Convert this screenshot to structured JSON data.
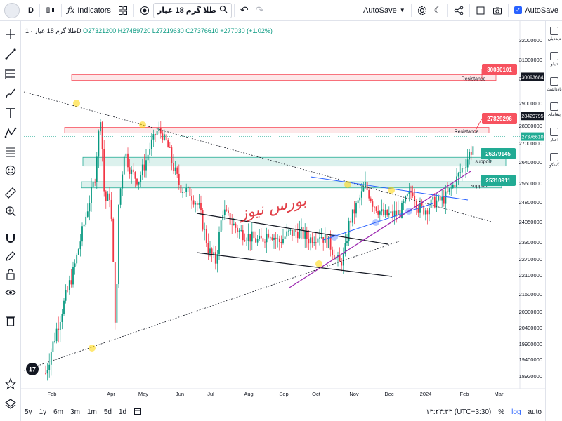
{
  "toolbar": {
    "interval": "D",
    "indicators_label": "Indicators",
    "symbol": "طلا گرم 18 عیار",
    "autosave": "AutoSave",
    "autosave_right": "AutoSave"
  },
  "legend": {
    "title": "طلا گرم 18 عیار · 1D",
    "open": "O27321200",
    "high": "H27489720",
    "low": "L27219630",
    "close": "C27376610",
    "change": "+277030 (+1.02%)"
  },
  "bottom": {
    "ranges": [
      "5y",
      "1y",
      "6m",
      "3m",
      "1m",
      "5d",
      "1d"
    ],
    "time": "۱۳:۲۴:۳۳ (UTC+3:30)",
    "percent": "%",
    "log": "log",
    "auto": "auto"
  },
  "right_panel": {
    "items": [
      "دیده‌بان",
      "تایلو",
      "یادداشت",
      "پیغامای",
      "اخبار",
      "گفتگو"
    ]
  },
  "watermark": "بورس نیوز",
  "logo": "17",
  "chart_data": {
    "type": "candlestick",
    "title": "طلا گرم 18 عیار · 1D",
    "x_labels": [
      "Feb",
      "Apr",
      "May",
      "Jun",
      "Jul",
      "Aug",
      "Sep",
      "Oct",
      "Nov",
      "Dec",
      "2024",
      "Feb",
      "Mar"
    ],
    "y_ticks": [
      32000000,
      31000000,
      30000000,
      29000000,
      28000000,
      27000000,
      26400000,
      25600000,
      24800000,
      24050000,
      23300000,
      22700000,
      22100000,
      21500000,
      20900000,
      20400000,
      19900000,
      19400000,
      18920000
    ],
    "y_tick_labels": [
      "32000000",
      "31000000",
      "30000000",
      "29000000",
      "28000000",
      "27000000",
      "26400000",
      "25600000",
      "24800000",
      "24050000",
      "23300000",
      "22700000",
      "22100000",
      "21500000",
      "20900000",
      "20400000",
      "19900000",
      "19400000",
      "18920000"
    ],
    "price_tags": [
      {
        "label": "30093684",
        "value": 30093684,
        "style": "dark"
      },
      {
        "label": "28429795",
        "value": 28429795,
        "style": "dark"
      },
      {
        "label": "27376610",
        "value": 27376610,
        "style": "green"
      }
    ],
    "zones": [
      {
        "label": "Resistance",
        "kind": "resistance",
        "top": 30200000,
        "bottom": 29950000,
        "callout": "30030101"
      },
      {
        "label": "Resistance",
        "kind": "resistance",
        "top": 27900000,
        "bottom": 27700000,
        "callout": "27829296"
      },
      {
        "label": "support",
        "kind": "support",
        "top": 26550000,
        "bottom": 26250000,
        "callout": "26379145"
      },
      {
        "label": "support",
        "kind": "support",
        "top": 25650000,
        "bottom": 25400000,
        "callout": "25310911"
      }
    ],
    "last_close": 27376610,
    "candle_count": 240,
    "ylim": [
      18700000,
      32500000
    ]
  }
}
